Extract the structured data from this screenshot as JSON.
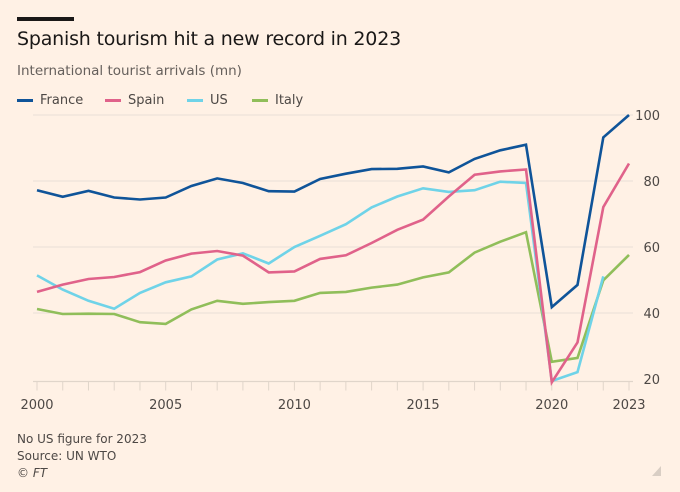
{
  "header": {
    "title": "Spanish tourism hit a new record in 2023",
    "subtitle": "International tourist arrivals (mn)"
  },
  "legend": [
    {
      "name": "France",
      "color": "#0F5499"
    },
    {
      "name": "Spain",
      "color": "#E0628A"
    },
    {
      "name": "US",
      "color": "#6FD3E8"
    },
    {
      "name": "Italy",
      "color": "#90BE5A"
    }
  ],
  "footer": {
    "note": "No US figure for 2023",
    "source": "Source: UN WTO",
    "copyright": "© FT"
  },
  "chart_data": {
    "type": "line",
    "title": "Spanish tourism hit a new record in 2023",
    "subtitle": "International tourist arrivals (mn)",
    "xlabel": "",
    "ylabel": "International tourist arrivals (mn)",
    "x": [
      2000,
      2001,
      2002,
      2003,
      2004,
      2005,
      2006,
      2007,
      2008,
      2009,
      2010,
      2011,
      2012,
      2013,
      2014,
      2015,
      2016,
      2017,
      2018,
      2019,
      2020,
      2021,
      2022,
      2023
    ],
    "xlim": [
      2000,
      2023
    ],
    "ylim": [
      20,
      100
    ],
    "x_ticks": [
      2000,
      2001,
      2002,
      2003,
      2004,
      2005,
      2006,
      2007,
      2008,
      2009,
      2010,
      2011,
      2012,
      2013,
      2014,
      2015,
      2016,
      2017,
      2018,
      2019,
      2020,
      2021,
      2022,
      2023
    ],
    "x_tick_labels": [
      "2000",
      "2005",
      "2010",
      "2015",
      "2020",
      "2023"
    ],
    "x_tick_label_values": [
      2000,
      2005,
      2010,
      2015,
      2020,
      2023
    ],
    "y_ticks": [
      20,
      40,
      60,
      80,
      100
    ],
    "y_tick_labels": [
      "20",
      "40",
      "60",
      "80",
      "100"
    ],
    "y_axis_side": "right",
    "grid": true,
    "legend_position": "top-left",
    "series": [
      {
        "name": "France",
        "color": "#0F5499",
        "values": [
          77.2,
          75.2,
          77.0,
          75.0,
          74.4,
          75.0,
          78.5,
          80.8,
          79.4,
          76.9,
          76.8,
          80.6,
          82.2,
          83.6,
          83.7,
          84.4,
          82.6,
          86.7,
          89.3,
          91.0,
          41.8,
          48.5,
          93.2,
          100.0
        ]
      },
      {
        "name": "Spain",
        "color": "#E0628A",
        "values": [
          46.4,
          48.6,
          50.3,
          50.9,
          52.4,
          55.9,
          58.0,
          58.8,
          57.4,
          52.3,
          52.6,
          56.4,
          57.5,
          61.2,
          65.2,
          68.3,
          75.3,
          81.9,
          82.9,
          83.5,
          19.0,
          31.1,
          72.1,
          85.3
        ]
      },
      {
        "name": "US",
        "color": "#6FD3E8",
        "values": [
          51.4,
          47.1,
          43.7,
          41.3,
          46.1,
          49.3,
          51.1,
          56.2,
          58.1,
          55.0,
          60.0,
          63.4,
          66.9,
          72.0,
          75.3,
          77.8,
          76.7,
          77.2,
          79.8,
          79.4,
          19.4,
          22.1,
          51.1,
          null
        ]
      },
      {
        "name": "Italy",
        "color": "#90BE5A",
        "values": [
          41.2,
          39.7,
          39.8,
          39.7,
          37.2,
          36.7,
          41.1,
          43.7,
          42.8,
          43.3,
          43.7,
          46.1,
          46.4,
          47.7,
          48.6,
          50.8,
          52.3,
          58.3,
          61.6,
          64.5,
          25.2,
          26.4,
          49.9,
          57.6
        ]
      }
    ],
    "annotations": [
      "No US figure for 2023",
      "Source: UN WTO",
      "© FT"
    ]
  }
}
